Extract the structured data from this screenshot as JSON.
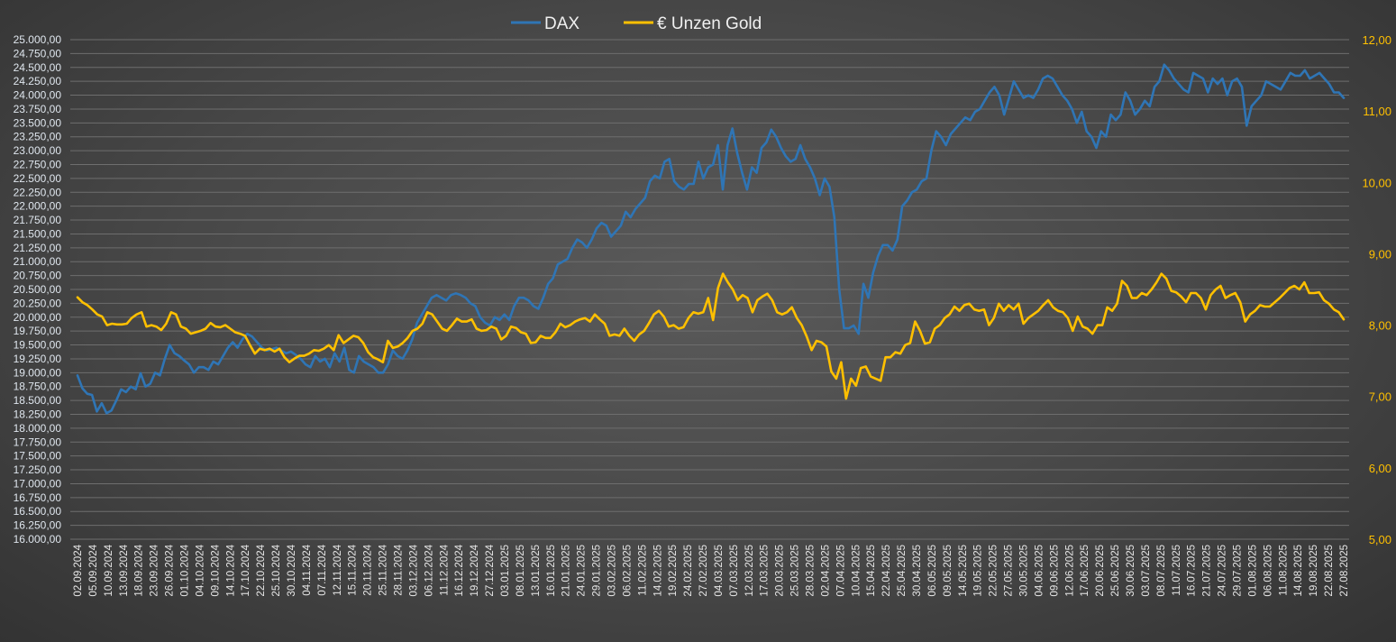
{
  "chart_data": {
    "type": "line",
    "title": "",
    "legend": {
      "placement": "top-center"
    },
    "grid": true,
    "y_left": {
      "min": 16000,
      "max": 25000,
      "step": 250,
      "tick_labels": [
        "16.000,00",
        "16.250,00",
        "16.500,00",
        "16.750,00",
        "17.000,00",
        "17.250,00",
        "17.500,00",
        "17.750,00",
        "18.000,00",
        "18.250,00",
        "18.500,00",
        "18.750,00",
        "19.000,00",
        "19.250,00",
        "19.500,00",
        "19.750,00",
        "20.000,00",
        "20.250,00",
        "20.500,00",
        "20.750,00",
        "21.000,00",
        "21.250,00",
        "21.500,00",
        "21.750,00",
        "22.000,00",
        "22.250,00",
        "22.500,00",
        "22.750,00",
        "23.000,00",
        "23.250,00",
        "23.500,00",
        "23.750,00",
        "24.000,00",
        "24.250,00",
        "24.500,00",
        "24.750,00",
        "25.000,00"
      ]
    },
    "y_right": {
      "min": 5,
      "max": 12,
      "step": 1,
      "tick_labels": [
        "5,00",
        "6,00",
        "7,00",
        "8,00",
        "9,00",
        "10,00",
        "11,00",
        "12,00"
      ]
    },
    "x_tick_labels": [
      "02.09.2024",
      "05.09.2024",
      "10.09.2024",
      "13.09.2024",
      "18.09.2024",
      "23.09.2024",
      "26.09.2024",
      "01.10.2024",
      "04.10.2024",
      "09.10.2024",
      "14.10.2024",
      "17.10.2024",
      "22.10.2024",
      "25.10.2024",
      "30.10.2024",
      "04.11.2024",
      "07.11.2024",
      "12.11.2024",
      "15.11.2024",
      "20.11.2024",
      "25.11.2024",
      "28.11.2024",
      "03.12.2024",
      "06.12.2024",
      "11.12.2024",
      "16.12.2024",
      "19.12.2024",
      "27.12.2024",
      "03.01.2025",
      "08.01.2025",
      "13.01.2025",
      "16.01.2025",
      "21.01.2025",
      "24.01.2025",
      "29.01.2025",
      "03.02.2025",
      "06.02.2025",
      "11.02.2025",
      "14.02.2025",
      "19.02.2025",
      "24.02.2025",
      "27.02.2025",
      "04.03.2025",
      "07.03.2025",
      "12.03.2025",
      "17.03.2025",
      "20.03.2025",
      "25.03.2025",
      "28.03.2025",
      "02.04.2025",
      "07.04.2025",
      "10.04.2025",
      "15.04.2025",
      "22.04.2025",
      "25.04.2025",
      "30.04.2025",
      "06.05.2025",
      "09.05.2025",
      "14.05.2025",
      "19.05.2025",
      "22.05.2025",
      "27.05.2025",
      "30.05.2025",
      "04.06.2025",
      "09.06.2025",
      "12.06.2025",
      "17.06.2025",
      "20.06.2025",
      "25.06.2025",
      "30.06.2025",
      "03.07.2025",
      "08.07.2025",
      "11.07.2025",
      "16.07.2025",
      "21.07.2025",
      "24.07.2025",
      "29.07.2025",
      "01.08.2025",
      "06.08.2025",
      "11.08.2025",
      "14.08.2025",
      "19.08.2025",
      "22.08.2025",
      "27.08.2025"
    ],
    "series": [
      {
        "name": "DAX",
        "color": "#2f75b5",
        "axis": "left",
        "values": [
          18950,
          18720,
          18620,
          18600,
          18300,
          18450,
          18270,
          18320,
          18500,
          18700,
          18650,
          18750,
          18700,
          18990,
          18750,
          18800,
          19000,
          18950,
          19250,
          19500,
          19350,
          19300,
          19220,
          19150,
          19000,
          19100,
          19100,
          19050,
          19200,
          19150,
          19300,
          19450,
          19550,
          19450,
          19600,
          19700,
          19650,
          19550,
          19450,
          19400,
          19420,
          19450,
          19400,
          19350,
          19380,
          19320,
          19250,
          19150,
          19100,
          19300,
          19200,
          19250,
          19100,
          19350,
          19200,
          19450,
          19050,
          19000,
          19300,
          19200,
          19150,
          19100,
          19000,
          19000,
          19150,
          19400,
          19300,
          19250,
          19400,
          19600,
          19900,
          20050,
          20200,
          20350,
          20400,
          20350,
          20300,
          20400,
          20430,
          20400,
          20350,
          20250,
          20200,
          20000,
          19900,
          19850,
          20000,
          19950,
          20050,
          19950,
          20200,
          20350,
          20350,
          20300,
          20200,
          20150,
          20350,
          20600,
          20700,
          20950,
          21000,
          21050,
          21250,
          21400,
          21350,
          21250,
          21400,
          21600,
          21700,
          21650,
          21450,
          21550,
          21650,
          21900,
          21800,
          21950,
          22050,
          22150,
          22450,
          22550,
          22500,
          22800,
          22850,
          22450,
          22350,
          22300,
          22400,
          22400,
          22800,
          22500,
          22700,
          22750,
          23100,
          22300,
          23100,
          23400,
          22950,
          22600,
          22300,
          22700,
          22600,
          23050,
          23150,
          23380,
          23250,
          23050,
          22900,
          22800,
          22850,
          23100,
          22850,
          22700,
          22500,
          22200,
          22500,
          22350,
          21800,
          20500,
          19800,
          19800,
          19850,
          19700,
          20600,
          20350,
          20800,
          21100,
          21300,
          21300,
          21200,
          21400,
          22000,
          22100,
          22250,
          22300,
          22450,
          22500,
          23000,
          23350,
          23250,
          23100,
          23300,
          23400,
          23500,
          23600,
          23550,
          23700,
          23750,
          23900,
          24050,
          24150,
          24000,
          23650,
          23950,
          24250,
          24100,
          23950,
          24000,
          23950,
          24100,
          24300,
          24350,
          24300,
          24150,
          24000,
          23900,
          23750,
          23500,
          23700,
          23350,
          23250,
          23050,
          23350,
          23250,
          23650,
          23550,
          23650,
          24050,
          23900,
          23650,
          23750,
          23900,
          23800,
          24150,
          24250,
          24550,
          24450,
          24300,
          24200,
          24100,
          24050,
          24400,
          24350,
          24300,
          24050,
          24300,
          24200,
          24300,
          24000,
          24250,
          24300,
          24150,
          23450,
          23800,
          23900,
          24000,
          24250,
          24200,
          24150,
          24100,
          24250,
          24400,
          24350,
          24350,
          24450,
          24300,
          24350,
          24400,
          24300,
          24200,
          24050,
          24050,
          23950
        ]
      },
      {
        "name": "€ Unzen Gold",
        "color": "#ffc000",
        "axis": "right",
        "values": [
          8.39,
          8.32,
          8.28,
          8.22,
          8.15,
          8.12,
          8.0,
          8.02,
          8.01,
          8.01,
          8.02,
          8.1,
          8.15,
          8.18,
          7.98,
          8.0,
          7.98,
          7.93,
          8.02,
          8.18,
          8.15,
          7.98,
          7.95,
          7.88,
          7.9,
          7.92,
          7.95,
          8.03,
          7.98,
          7.97,
          8.0,
          7.95,
          7.9,
          7.88,
          7.85,
          7.72,
          7.6,
          7.67,
          7.65,
          7.67,
          7.63,
          7.67,
          7.55,
          7.48,
          7.53,
          7.57,
          7.57,
          7.6,
          7.65,
          7.64,
          7.67,
          7.72,
          7.65,
          7.86,
          7.75,
          7.8,
          7.85,
          7.83,
          7.75,
          7.62,
          7.55,
          7.52,
          7.48,
          7.78,
          7.68,
          7.7,
          7.75,
          7.82,
          7.92,
          7.95,
          8.02,
          8.18,
          8.15,
          8.05,
          7.95,
          7.92,
          8.0,
          8.09,
          8.05,
          8.05,
          8.08,
          7.95,
          7.92,
          7.93,
          7.98,
          7.95,
          7.8,
          7.85,
          7.98,
          7.96,
          7.9,
          7.88,
          7.75,
          7.76,
          7.85,
          7.82,
          7.82,
          7.9,
          8.02,
          7.97,
          8.0,
          8.05,
          8.08,
          8.1,
          8.05,
          8.15,
          8.08,
          8.02,
          7.85,
          7.87,
          7.85,
          7.95,
          7.85,
          7.78,
          7.87,
          7.92,
          8.03,
          8.15,
          8.2,
          8.12,
          7.98,
          8.0,
          7.95,
          7.97,
          8.1,
          8.18,
          8.16,
          8.18,
          8.38,
          8.07,
          8.52,
          8.72,
          8.6,
          8.5,
          8.35,
          8.42,
          8.38,
          8.18,
          8.35,
          8.4,
          8.44,
          8.35,
          8.18,
          8.15,
          8.18,
          8.25,
          8.1,
          8.0,
          7.84,
          7.65,
          7.78,
          7.76,
          7.7,
          7.35,
          7.25,
          7.48,
          6.97,
          7.25,
          7.15,
          7.4,
          7.42,
          7.28,
          7.25,
          7.22,
          7.55,
          7.55,
          7.62,
          7.6,
          7.72,
          7.75,
          8.05,
          7.92,
          7.74,
          7.76,
          7.95,
          8.0,
          8.1,
          8.15,
          8.26,
          8.2,
          8.28,
          8.3,
          8.22,
          8.2,
          8.22,
          8.0,
          8.1,
          8.3,
          8.2,
          8.28,
          8.22,
          8.3,
          8.02,
          8.1,
          8.15,
          8.2,
          8.28,
          8.35,
          8.25,
          8.2,
          8.18,
          8.1,
          7.92,
          8.12,
          7.98,
          7.95,
          7.88,
          8.0,
          8.0,
          8.25,
          8.2,
          8.3,
          8.62,
          8.55,
          8.38,
          8.38,
          8.45,
          8.42,
          8.5,
          8.6,
          8.72,
          8.65,
          8.48,
          8.46,
          8.4,
          8.32,
          8.45,
          8.45,
          8.38,
          8.22,
          8.42,
          8.5,
          8.55,
          8.38,
          8.42,
          8.45,
          8.32,
          8.05,
          8.15,
          8.2,
          8.28,
          8.26,
          8.26,
          8.32,
          8.38,
          8.45,
          8.52,
          8.55,
          8.5,
          8.6,
          8.45,
          8.45,
          8.46,
          8.35,
          8.3,
          8.22,
          8.18,
          8.08
        ]
      }
    ]
  }
}
